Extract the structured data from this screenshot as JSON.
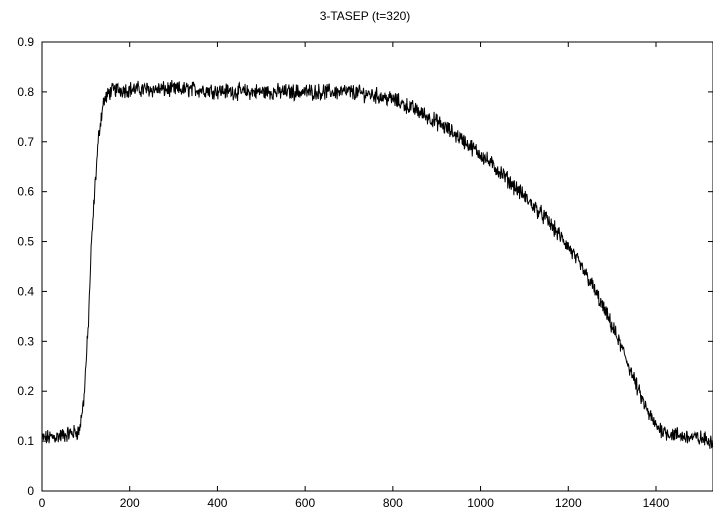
{
  "chart_data": {
    "type": "line",
    "title": "3-TASEP (t=320)",
    "xlabel": "",
    "ylabel": "",
    "xlim": [
      0,
      1530
    ],
    "ylim": [
      0,
      0.9
    ],
    "x_ticks": [
      0,
      200,
      400,
      600,
      800,
      1000,
      1200,
      1400
    ],
    "y_ticks": [
      0,
      0.1,
      0.2,
      0.3,
      0.4,
      0.5,
      0.6,
      0.7,
      0.8,
      0.9
    ],
    "x_tick_labels": [
      "0",
      "200",
      "400",
      "600",
      "800",
      "1000",
      "1200",
      "1400"
    ],
    "y_tick_labels": [
      "0",
      "0.1",
      "0.2",
      "0.3",
      "0.4",
      "0.5",
      "0.6",
      "0.7",
      "0.8",
      "0.9"
    ],
    "grid": false,
    "legend": "none",
    "line_color": "#000000",
    "noise_amplitude": 0.013,
    "series": [
      {
        "profile_x": [
          0,
          40,
          85,
          95,
          105,
          112,
          120,
          130,
          140,
          155,
          170,
          250,
          350,
          450,
          550,
          650,
          700,
          750,
          800,
          850,
          900,
          950,
          1000,
          1050,
          1100,
          1150,
          1200,
          1250,
          1300,
          1330,
          1360,
          1380,
          1400,
          1430,
          1460,
          1500,
          1530
        ],
        "profile_y": [
          0.105,
          0.11,
          0.12,
          0.18,
          0.32,
          0.48,
          0.6,
          0.72,
          0.78,
          0.8,
          0.805,
          0.805,
          0.805,
          0.8,
          0.8,
          0.8,
          0.8,
          0.795,
          0.785,
          0.765,
          0.74,
          0.71,
          0.675,
          0.635,
          0.59,
          0.545,
          0.49,
          0.42,
          0.33,
          0.27,
          0.2,
          0.16,
          0.13,
          0.115,
          0.11,
          0.105,
          0.1
        ]
      }
    ]
  }
}
